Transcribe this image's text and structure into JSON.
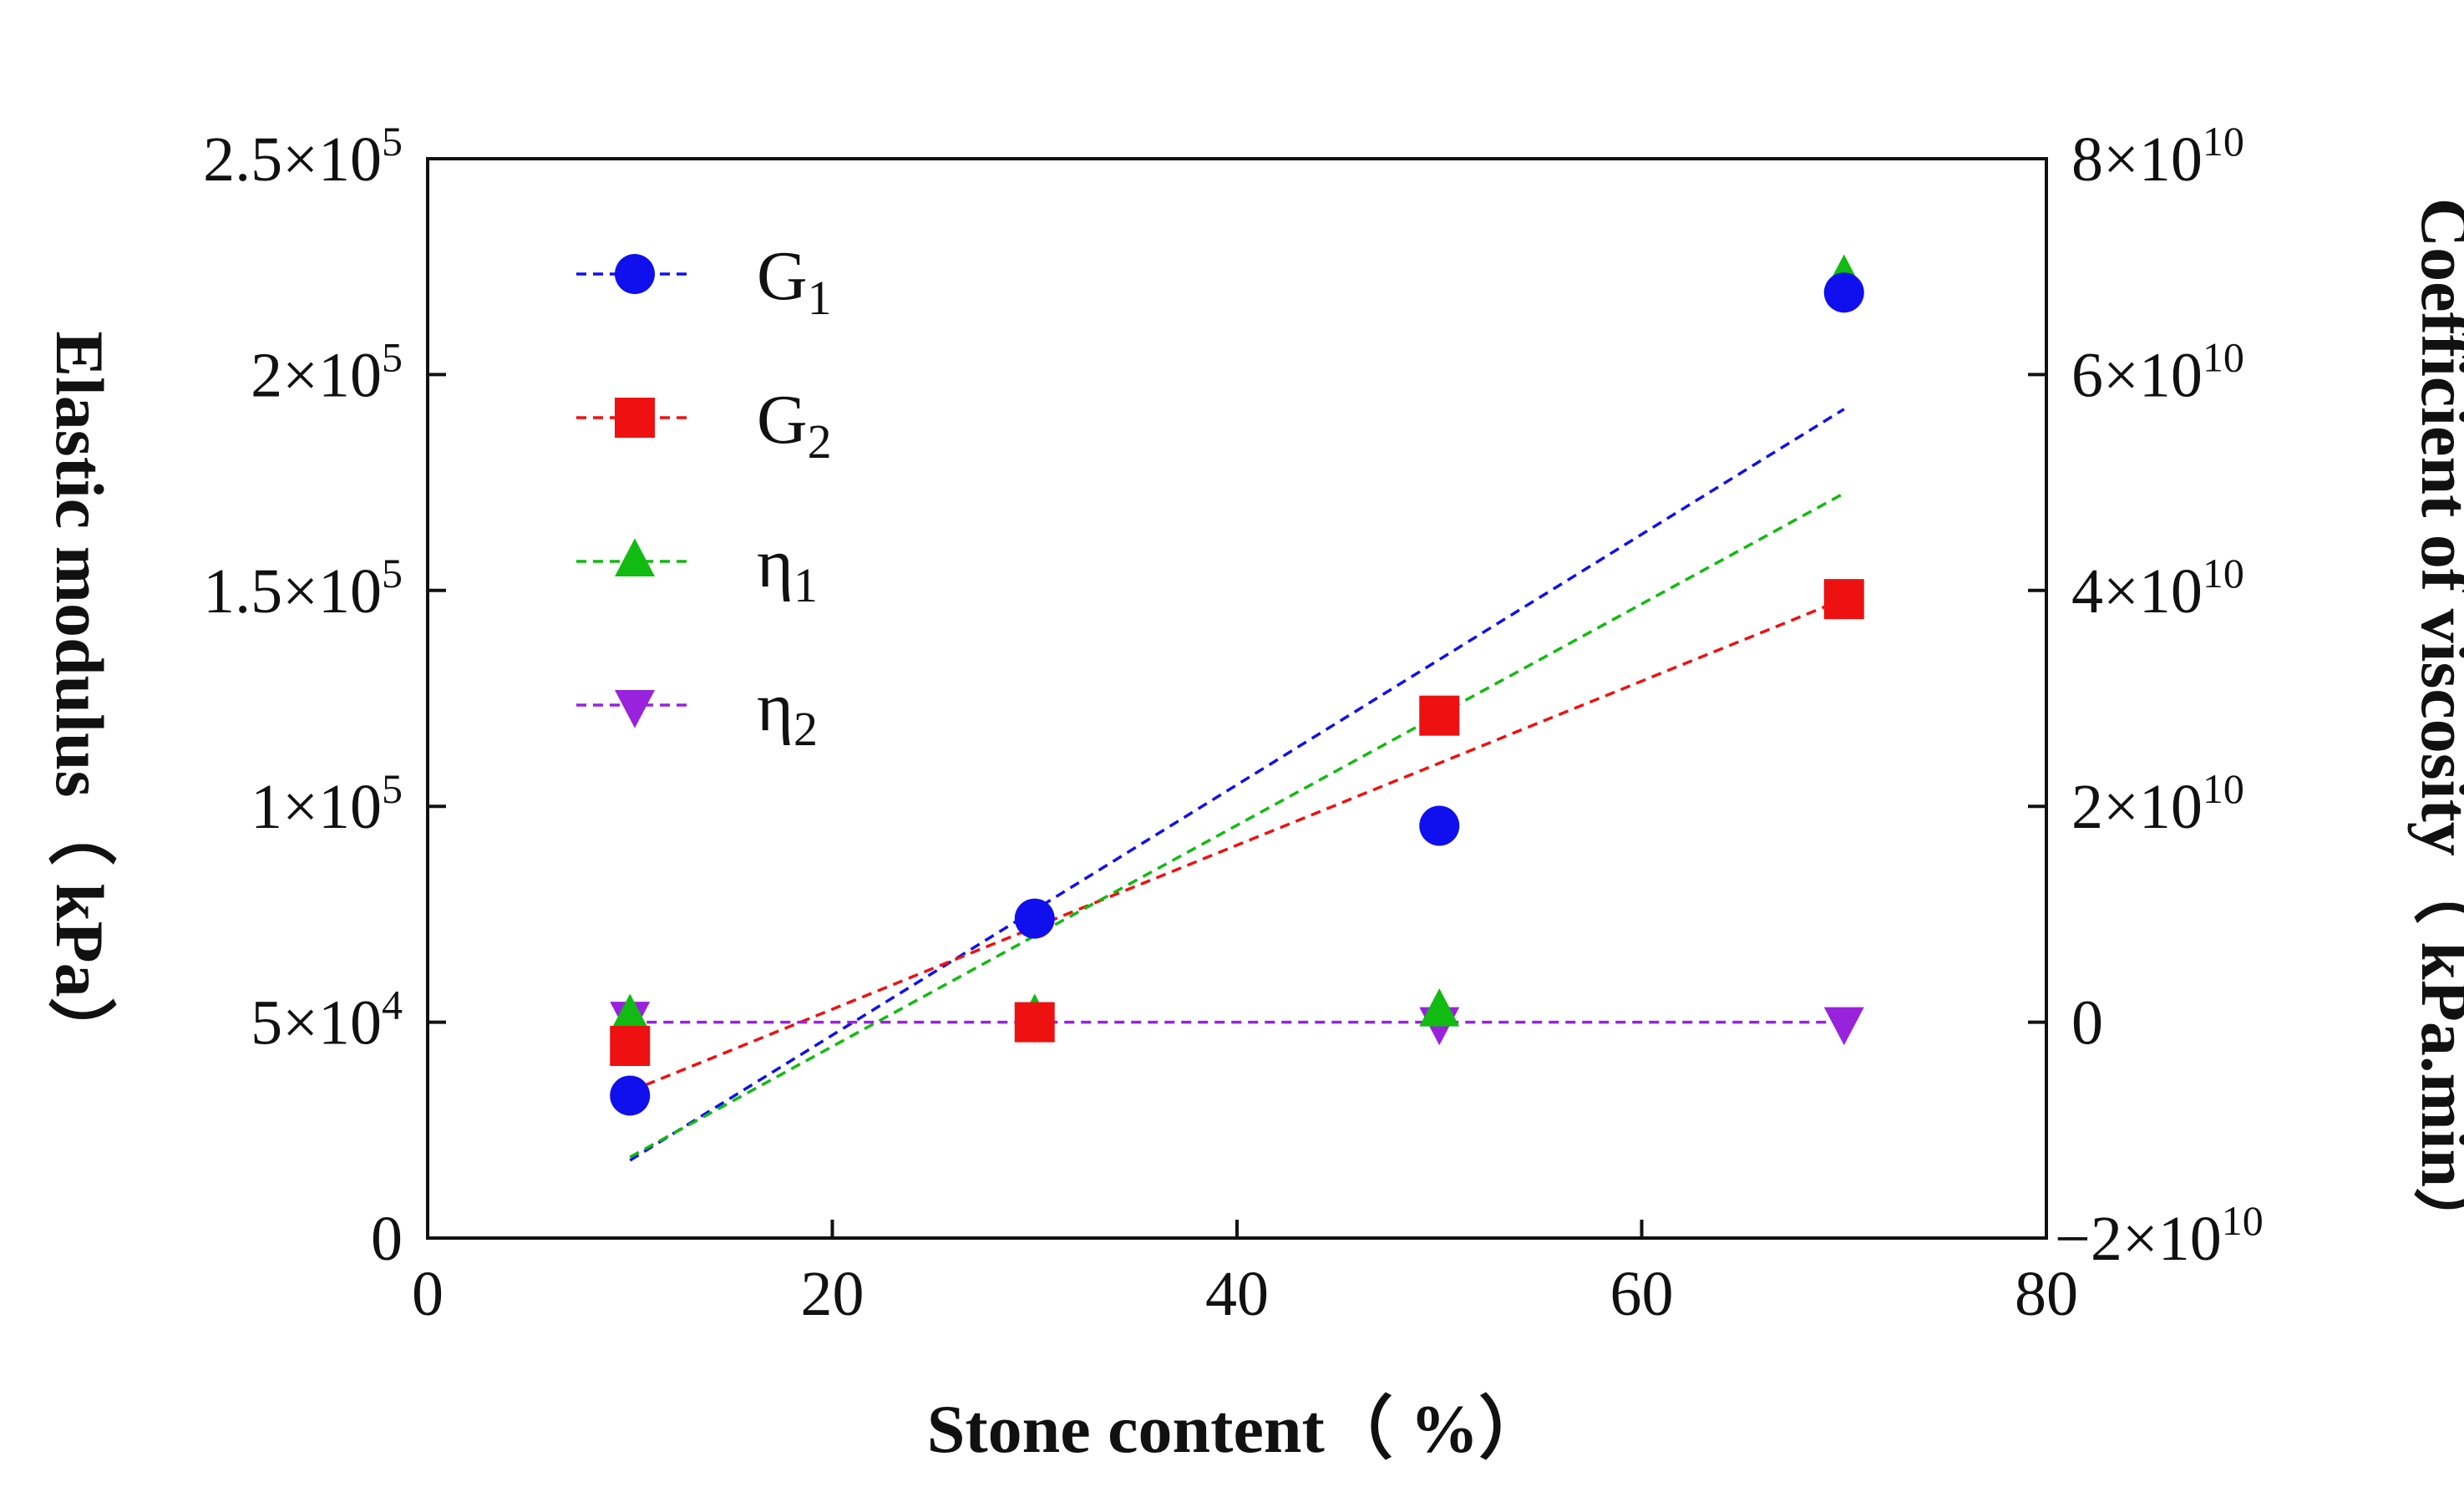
{
  "chart_data": {
    "type": "scatter",
    "xlabel": "Stone content（ %）",
    "ylabel_left": "Elastic modulus（ kPa）",
    "ylabel_right": "Coefficient of viscosity（ kPa.min）",
    "x_range": [
      0,
      80
    ],
    "y_left_range": [
      0,
      250000
    ],
    "y_right_range": [
      -20000000000,
      80000000000
    ],
    "grid": false,
    "legend_position": "top-left",
    "x_ticks": [
      "0",
      "20",
      "40",
      "60",
      "80"
    ],
    "x_tick_values": [
      0,
      20,
      40,
      60,
      80
    ],
    "y_left_ticks": [
      {
        "value": 0,
        "mantissa": "0",
        "exp": ""
      },
      {
        "value": 50000,
        "mantissa": "5×10",
        "exp": "4"
      },
      {
        "value": 100000,
        "mantissa": "1×10",
        "exp": "5"
      },
      {
        "value": 150000,
        "mantissa": "1.5×10",
        "exp": "5"
      },
      {
        "value": 200000,
        "mantissa": "2×10",
        "exp": "5"
      },
      {
        "value": 250000,
        "mantissa": "2.5×10",
        "exp": "5"
      }
    ],
    "y_right_ticks": [
      {
        "value": -20000000000,
        "mantissa": "−2×10",
        "exp": "10"
      },
      {
        "value": 0,
        "mantissa": "0",
        "exp": ""
      },
      {
        "value": 20000000000,
        "mantissa": "2×10",
        "exp": "10"
      },
      {
        "value": 40000000000,
        "mantissa": "4×10",
        "exp": "10"
      },
      {
        "value": 60000000000,
        "mantissa": "6×10",
        "exp": "10"
      },
      {
        "value": 80000000000,
        "mantissa": "8×10",
        "exp": "10"
      }
    ],
    "series": [
      {
        "name": "G",
        "sub": "1",
        "axis": "left",
        "marker": "circle",
        "color": "#1010ee",
        "x": [
          10,
          30,
          50,
          70
        ],
        "y": [
          33000,
          74000,
          95500,
          219000
        ],
        "trend": {
          "x": [
            10,
            70
          ],
          "y": [
            18000,
            192000
          ]
        }
      },
      {
        "name": "G",
        "sub": "2",
        "axis": "left",
        "marker": "square",
        "color": "#ee1111",
        "x": [
          10,
          30,
          50,
          70
        ],
        "y": [
          44500,
          50000,
          121000,
          148000
        ],
        "trend": {
          "x": [
            10,
            70
          ],
          "y": [
            34000,
            148000
          ]
        }
      },
      {
        "name": "η",
        "sub": "1",
        "axis": "right",
        "marker": "triangle-up",
        "color": "#11bb11",
        "x": [
          10,
          30,
          50,
          70
        ],
        "y": [
          500000000,
          500000000,
          1000000000,
          69000000000
        ],
        "trend": {
          "x": [
            10,
            70
          ],
          "y": [
            -12500000000,
            49000000000
          ]
        }
      },
      {
        "name": "η",
        "sub": "2",
        "axis": "right",
        "marker": "triangle-down",
        "color": "#9922dd",
        "x": [
          10,
          30,
          50,
          70
        ],
        "y": [
          500000000,
          200000000,
          0,
          0
        ],
        "trend": {
          "x": [
            10,
            70
          ],
          "y": [
            0,
            0
          ]
        }
      }
    ]
  }
}
